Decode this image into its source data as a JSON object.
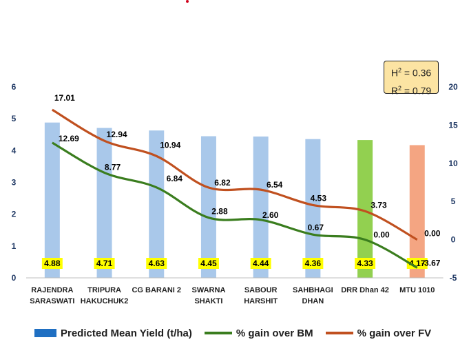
{
  "statbox": {
    "h2_label": "H",
    "h2_sup": "2",
    "h2_value": " = 0.36",
    "r2_label": "R",
    "r2_sup": "2",
    "r2_value": " = 0.79"
  },
  "legend": {
    "bar": "Predicted Mean Yield (t/ha)",
    "bm": "% gain over BM",
    "fv": "% gain over FV"
  },
  "colors": {
    "bar_default": "#a9c8ea",
    "bar_bm": "#92d050",
    "bar_fv": "#f4a582",
    "legend_bar": "#1f6fc2",
    "line_bm": "#3a7d1e",
    "line_fv": "#c0501f",
    "label_bg": "#ffff00"
  },
  "chart_data": {
    "type": "bar",
    "categories": [
      [
        "RAJENDRA",
        "SARASWATI"
      ],
      [
        "TRIPURA",
        "HAKUCHUK2"
      ],
      [
        "CG BARANI 2"
      ],
      [
        "SWARNA",
        "SHAKTI"
      ],
      [
        "SABOUR",
        "HARSHIT"
      ],
      [
        "SAHBHAGI",
        "DHAN"
      ],
      [
        "DRR Dhan 42"
      ],
      [
        "MTU 1010"
      ]
    ],
    "series": [
      {
        "name": "Predicted Mean Yield (t/ha)",
        "axis": "left",
        "type": "bar",
        "values": [
          4.88,
          4.71,
          4.63,
          4.45,
          4.44,
          4.36,
          4.33,
          4.17
        ],
        "labels": [
          "4.88",
          "4.71",
          "4.63",
          "4.45",
          "4.44",
          "4.36",
          "4.33",
          "4.17"
        ]
      },
      {
        "name": "% gain over BM",
        "axis": "right",
        "type": "line",
        "values": [
          12.69,
          8.77,
          6.84,
          2.88,
          2.6,
          0.67,
          0.0,
          -3.67
        ],
        "labels": [
          "12.69",
          "8.77",
          "6.84",
          "2.88",
          "2.60",
          "0.67",
          "0.00",
          "-3.67"
        ]
      },
      {
        "name": "% gain over FV",
        "axis": "right",
        "type": "line",
        "values": [
          17.01,
          12.94,
          10.94,
          6.82,
          6.54,
          4.53,
          3.73,
          0.0
        ],
        "labels": [
          "17.01",
          "12.94",
          "10.94",
          "6.82",
          "6.54",
          "4.53",
          "3.73",
          "0.00"
        ]
      }
    ],
    "y_left": {
      "min": 0,
      "max": 6,
      "ticks": [
        "0",
        "1",
        "2",
        "3",
        "4",
        "5",
        "6"
      ]
    },
    "y_right": {
      "min": -5,
      "max": 20,
      "ticks": [
        "-5",
        "0",
        "5",
        "10",
        "15",
        "20"
      ]
    },
    "grid": false,
    "legend_position": "bottom"
  }
}
